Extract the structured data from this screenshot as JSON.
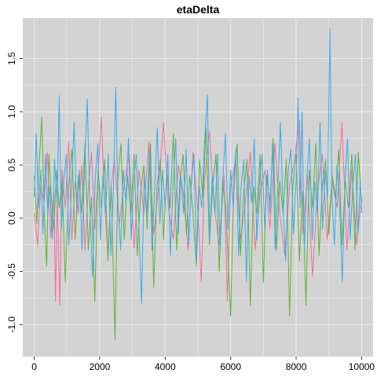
{
  "chart_data": {
    "type": "line",
    "title": "etaDelta",
    "xlabel": "",
    "ylabel": "",
    "xlim": [
      -350,
      10350
    ],
    "ylim": [
      -1.3,
      1.88
    ],
    "x_ticks": [
      0,
      2000,
      4000,
      6000,
      8000,
      10000
    ],
    "y_ticks": [
      -1.0,
      -0.5,
      0.0,
      0.5,
      1.0,
      1.5
    ],
    "x_tick_labels": [
      "0",
      "2000",
      "4000",
      "6000",
      "8000",
      "10000"
    ],
    "y_tick_labels": [
      "-1.0",
      "-0.5",
      "0.0",
      "0.5",
      "1.0",
      "1.5"
    ],
    "grid": true,
    "legend": "none",
    "colors": {
      "panel_background": "#d3d3d3",
      "grid": "#ebebeb",
      "series": [
        "#f0709a",
        "#5fb23a",
        "#3aaaef"
      ]
    },
    "series": [
      {
        "values": [
          [
            0,
            0.05
          ],
          [
            100,
            -0.25
          ],
          [
            200,
            0.3
          ],
          [
            300,
            0.15
          ],
          [
            400,
            0.62
          ],
          [
            500,
            -0.18
          ],
          [
            600,
            0.25
          ],
          [
            650,
            -0.78
          ],
          [
            700,
            0.2
          ],
          [
            780,
            -0.82
          ],
          [
            850,
            0.45
          ],
          [
            950,
            0.1
          ],
          [
            1050,
            0.72
          ],
          [
            1150,
            -0.2
          ],
          [
            1250,
            0.35
          ],
          [
            1350,
            0.05
          ],
          [
            1450,
            0.5
          ],
          [
            1550,
            -0.3
          ],
          [
            1650,
            0.28
          ],
          [
            1750,
            0.62
          ],
          [
            1850,
            -0.1
          ],
          [
            1950,
            0.4
          ],
          [
            2050,
            0.95
          ],
          [
            2150,
            0.15
          ],
          [
            2250,
            -0.35
          ],
          [
            2350,
            0.3
          ],
          [
            2450,
            0.55
          ],
          [
            2600,
            -0.05
          ],
          [
            2750,
            0.32
          ],
          [
            2900,
            0.6
          ],
          [
            3050,
            -0.28
          ],
          [
            3200,
            0.45
          ],
          [
            3350,
            0.05
          ],
          [
            3500,
            0.72
          ],
          [
            3650,
            -0.15
          ],
          [
            3800,
            0.3
          ],
          [
            3950,
            0.9
          ],
          [
            4100,
            0.1
          ],
          [
            4250,
            -0.2
          ],
          [
            4400,
            0.5
          ],
          [
            4550,
            0.25
          ],
          [
            4700,
            -0.3
          ],
          [
            4850,
            0.62
          ],
          [
            5000,
            0.05
          ],
          [
            5100,
            -0.6
          ],
          [
            5200,
            0.35
          ],
          [
            5350,
            0.82
          ],
          [
            5500,
            0.1
          ],
          [
            5650,
            -0.25
          ],
          [
            5800,
            0.4
          ],
          [
            5900,
            -0.78
          ],
          [
            6000,
            0.3
          ],
          [
            6150,
            0.55
          ],
          [
            6300,
            -0.2
          ],
          [
            6450,
            0.15
          ],
          [
            6600,
            0.62
          ],
          [
            6750,
            -0.3
          ],
          [
            6900,
            0.25
          ],
          [
            7050,
            0.45
          ],
          [
            7200,
            -0.1
          ],
          [
            7350,
            0.7
          ],
          [
            7500,
            0.05
          ],
          [
            7650,
            -0.35
          ],
          [
            7800,
            0.3
          ],
          [
            7950,
            0.55
          ],
          [
            8100,
            0.92
          ],
          [
            8200,
            -0.15
          ],
          [
            8350,
            0.4
          ],
          [
            8500,
            -0.55
          ],
          [
            8650,
            0.25
          ],
          [
            8800,
            0.6
          ],
          [
            8950,
            -0.2
          ],
          [
            9100,
            0.35
          ],
          [
            9250,
            0.1
          ],
          [
            9400,
            0.9
          ],
          [
            9550,
            -0.3
          ],
          [
            9700,
            0.45
          ],
          [
            9850,
            -0.25
          ],
          [
            10000,
            0.2
          ]
        ]
      },
      {
        "values": [
          [
            0,
            0.4
          ],
          [
            80,
            -0.05
          ],
          [
            150,
            0.5
          ],
          [
            230,
            0.95
          ],
          [
            300,
            0.1
          ],
          [
            380,
            -0.45
          ],
          [
            450,
            0.6
          ],
          [
            520,
            0.2
          ],
          [
            600,
            -0.1
          ],
          [
            680,
            0.45
          ],
          [
            760,
            0.1
          ],
          [
            850,
            0.35
          ],
          [
            950,
            -0.6
          ],
          [
            1050,
            0.3
          ],
          [
            1150,
            0.65
          ],
          [
            1250,
            -0.2
          ],
          [
            1350,
            0.4
          ],
          [
            1450,
            0.05
          ],
          [
            1550,
            0.7
          ],
          [
            1650,
            -0.3
          ],
          [
            1750,
            0.2
          ],
          [
            1850,
            -0.78
          ],
          [
            1950,
            0.45
          ],
          [
            2050,
            0.1
          ],
          [
            2150,
            0.55
          ],
          [
            2250,
            -0.4
          ],
          [
            2350,
            0.3
          ],
          [
            2470,
            -1.14
          ],
          [
            2550,
            0.35
          ],
          [
            2650,
            0.7
          ],
          [
            2750,
            -0.2
          ],
          [
            2850,
            0.4
          ],
          [
            2950,
            0.05
          ],
          [
            3050,
            0.6
          ],
          [
            3150,
            -0.35
          ],
          [
            3250,
            0.25
          ],
          [
            3350,
            0.5
          ],
          [
            3450,
            -0.1
          ],
          [
            3550,
            0.7
          ],
          [
            3650,
            -0.65
          ],
          [
            3750,
            0.3
          ],
          [
            3850,
            0.55
          ],
          [
            3950,
            -0.2
          ],
          [
            4050,
            0.45
          ],
          [
            4150,
            0.1
          ],
          [
            4250,
            0.8
          ],
          [
            4350,
            -0.3
          ],
          [
            4450,
            0.35
          ],
          [
            4550,
            0.6
          ],
          [
            4650,
            -0.15
          ],
          [
            4750,
            0.4
          ],
          [
            4850,
            0.05
          ],
          [
            4950,
            -0.45
          ],
          [
            5050,
            0.55
          ],
          [
            5150,
            0.2
          ],
          [
            5250,
            0.85
          ],
          [
            5350,
            -0.25
          ],
          [
            5450,
            0.3
          ],
          [
            5550,
            0.6
          ],
          [
            5650,
            -0.5
          ],
          [
            5750,
            0.35
          ],
          [
            5850,
            0.1
          ],
          [
            6000,
            -0.92
          ],
          [
            6100,
            0.4
          ],
          [
            6200,
            0.7
          ],
          [
            6300,
            -0.35
          ],
          [
            6400,
            0.25
          ],
          [
            6500,
            0.55
          ],
          [
            6600,
            -0.82
          ],
          [
            6700,
            0.3
          ],
          [
            6800,
            0.05
          ],
          [
            6900,
            0.6
          ],
          [
            7000,
            -0.6
          ],
          [
            7100,
            0.4
          ],
          [
            7200,
            0.15
          ],
          [
            7300,
            0.75
          ],
          [
            7400,
            -0.3
          ],
          [
            7500,
            0.35
          ],
          [
            7600,
            0.05
          ],
          [
            7700,
            0.55
          ],
          [
            7800,
            -0.92
          ],
          [
            7900,
            0.3
          ],
          [
            8000,
            0.6
          ],
          [
            8100,
            -0.4
          ],
          [
            8200,
            0.25
          ],
          [
            8300,
            -0.82
          ],
          [
            8400,
            0.45
          ],
          [
            8500,
            0.1
          ],
          [
            8600,
            0.7
          ],
          [
            8700,
            -0.35
          ],
          [
            8800,
            0.3
          ],
          [
            8900,
            0.55
          ],
          [
            9000,
            -0.15
          ],
          [
            9100,
            0.4
          ],
          [
            9200,
            0.2
          ],
          [
            9300,
            0.65
          ],
          [
            9400,
            -0.25
          ],
          [
            9500,
            0.35
          ],
          [
            9600,
            0.1
          ],
          [
            9700,
            0.6
          ],
          [
            9800,
            -0.3
          ],
          [
            9900,
            0.62
          ],
          [
            10000,
            0.15
          ]
        ]
      },
      {
        "values": [
          [
            0,
            0.2
          ],
          [
            60,
            0.8
          ],
          [
            130,
            0.1
          ],
          [
            200,
            0.45
          ],
          [
            270,
            -0.15
          ],
          [
            340,
            0.6
          ],
          [
            410,
            0.05
          ],
          [
            480,
            0.3
          ],
          [
            550,
            -0.2
          ],
          [
            620,
            0.55
          ],
          [
            700,
            0.15
          ],
          [
            760,
            1.15
          ],
          [
            830,
            -0.1
          ],
          [
            900,
            0.35
          ],
          [
            980,
            0.6
          ],
          [
            1060,
            -0.25
          ],
          [
            1140,
            0.3
          ],
          [
            1220,
            0.9
          ],
          [
            1300,
            0.05
          ],
          [
            1380,
            0.45
          ],
          [
            1460,
            -0.3
          ],
          [
            1540,
            0.5
          ],
          [
            1620,
            1.12
          ],
          [
            1700,
            0.1
          ],
          [
            1780,
            -0.55
          ],
          [
            1860,
            0.35
          ],
          [
            1940,
            0.7
          ],
          [
            2020,
            -0.2
          ],
          [
            2100,
            0.4
          ],
          [
            2180,
            0.05
          ],
          [
            2260,
            0.6
          ],
          [
            2340,
            -0.35
          ],
          [
            2420,
            0.3
          ],
          [
            2490,
            1.23
          ],
          [
            2560,
            0.1
          ],
          [
            2640,
            -0.3
          ],
          [
            2720,
            0.45
          ],
          [
            2800,
            0.15
          ],
          [
            2880,
            0.75
          ],
          [
            2960,
            -0.2
          ],
          [
            3040,
            0.35
          ],
          [
            3120,
            0.6
          ],
          [
            3200,
            -0.1
          ],
          [
            3280,
            -0.8
          ],
          [
            3360,
            0.4
          ],
          [
            3440,
            0.05
          ],
          [
            3520,
            0.65
          ],
          [
            3600,
            -0.3
          ],
          [
            3680,
            0.3
          ],
          [
            3760,
            0.85
          ],
          [
            3840,
            -0.05
          ],
          [
            3920,
            0.45
          ],
          [
            4000,
            0.1
          ],
          [
            4080,
            0.6
          ],
          [
            4160,
            -0.35
          ],
          [
            4240,
            0.3
          ],
          [
            4320,
            0.75
          ],
          [
            4400,
            -0.15
          ],
          [
            4480,
            0.4
          ],
          [
            4560,
            0.05
          ],
          [
            4640,
            0.65
          ],
          [
            4720,
            -0.25
          ],
          [
            4800,
            0.35
          ],
          [
            4880,
            0.6
          ],
          [
            4960,
            -0.4
          ],
          [
            5040,
            0.3
          ],
          [
            5120,
            0.1
          ],
          [
            5200,
            0.7
          ],
          [
            5290,
            1.16
          ],
          [
            5360,
            -0.2
          ],
          [
            5440,
            0.4
          ],
          [
            5520,
            0.05
          ],
          [
            5600,
            0.6
          ],
          [
            5680,
            -0.3
          ],
          [
            5760,
            0.35
          ],
          [
            5840,
            0.8
          ],
          [
            5920,
            -0.1
          ],
          [
            6000,
            0.45
          ],
          [
            6080,
            0.1
          ],
          [
            6160,
            0.65
          ],
          [
            6240,
            -0.35
          ],
          [
            6320,
            0.3
          ],
          [
            6400,
            0.55
          ],
          [
            6480,
            -0.6
          ],
          [
            6560,
            0.4
          ],
          [
            6640,
            0.15
          ],
          [
            6720,
            0.75
          ],
          [
            6800,
            -0.2
          ],
          [
            6880,
            0.35
          ],
          [
            6960,
            0.6
          ],
          [
            7040,
            -0.1
          ],
          [
            7120,
            0.45
          ],
          [
            7200,
            0.05
          ],
          [
            7280,
            0.7
          ],
          [
            7360,
            -0.3
          ],
          [
            7440,
            0.3
          ],
          [
            7520,
            0.9
          ],
          [
            7600,
            0.1
          ],
          [
            7680,
            -0.4
          ],
          [
            7760,
            0.45
          ],
          [
            7840,
            0.65
          ],
          [
            7920,
            -0.15
          ],
          [
            8000,
            0.35
          ],
          [
            8060,
            1.13
          ],
          [
            8120,
            0.1
          ],
          [
            8180,
            1.0
          ],
          [
            8250,
            -0.3
          ],
          [
            8330,
            0.4
          ],
          [
            8410,
            0.75
          ],
          [
            8490,
            -0.2
          ],
          [
            8570,
            0.35
          ],
          [
            8650,
            0.05
          ],
          [
            8730,
            0.9
          ],
          [
            8810,
            -0.1
          ],
          [
            8890,
            0.45
          ],
          [
            8960,
            0.2
          ],
          [
            9030,
            1.78
          ],
          [
            9100,
            0.15
          ],
          [
            9170,
            -0.25
          ],
          [
            9250,
            0.5
          ],
          [
            9330,
            0.1
          ],
          [
            9410,
            -0.6
          ],
          [
            9490,
            0.35
          ],
          [
            9570,
            0.75
          ],
          [
            9650,
            -0.2
          ],
          [
            9730,
            0.3
          ],
          [
            9810,
            0.6
          ],
          [
            9890,
            -0.15
          ],
          [
            9960,
            0.35
          ],
          [
            10000,
            0.05
          ]
        ]
      }
    ]
  }
}
